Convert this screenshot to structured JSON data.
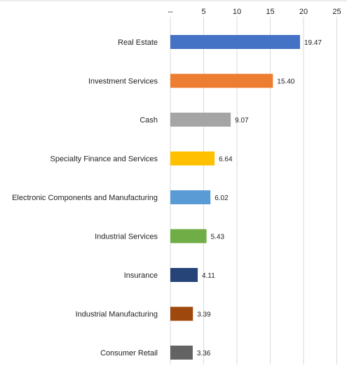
{
  "chart_data": {
    "type": "bar",
    "orientation": "horizontal",
    "x_axis_position": "top",
    "categories": [
      "Real Estate",
      "Investment Services",
      "Cash",
      "Specialty Finance and Services",
      "Electronic Components and Manufacturing",
      "Industrial Services",
      "Insurance",
      "Industrial Manufacturing",
      "Consumer Retail"
    ],
    "values": [
      19.47,
      15.4,
      9.07,
      6.64,
      6.02,
      5.43,
      4.11,
      3.39,
      3.36
    ],
    "value_labels": [
      "19.47",
      "15.40",
      "9.07",
      "6.64",
      "6.02",
      "5.43",
      "4.11",
      "3.39",
      "3.36"
    ],
    "colors": [
      "#4472C4",
      "#ED7D31",
      "#A5A5A5",
      "#FFC000",
      "#5B9BD5",
      "#70AD47",
      "#264478",
      "#9E480E",
      "#636363"
    ],
    "xlim": [
      0,
      25
    ],
    "ticks": [
      0,
      5,
      10,
      15,
      20,
      25
    ],
    "tick_labels": [
      "--",
      "5",
      "10",
      "15",
      "20",
      "25"
    ],
    "grid": true,
    "title": "",
    "xlabel": "",
    "ylabel": ""
  }
}
